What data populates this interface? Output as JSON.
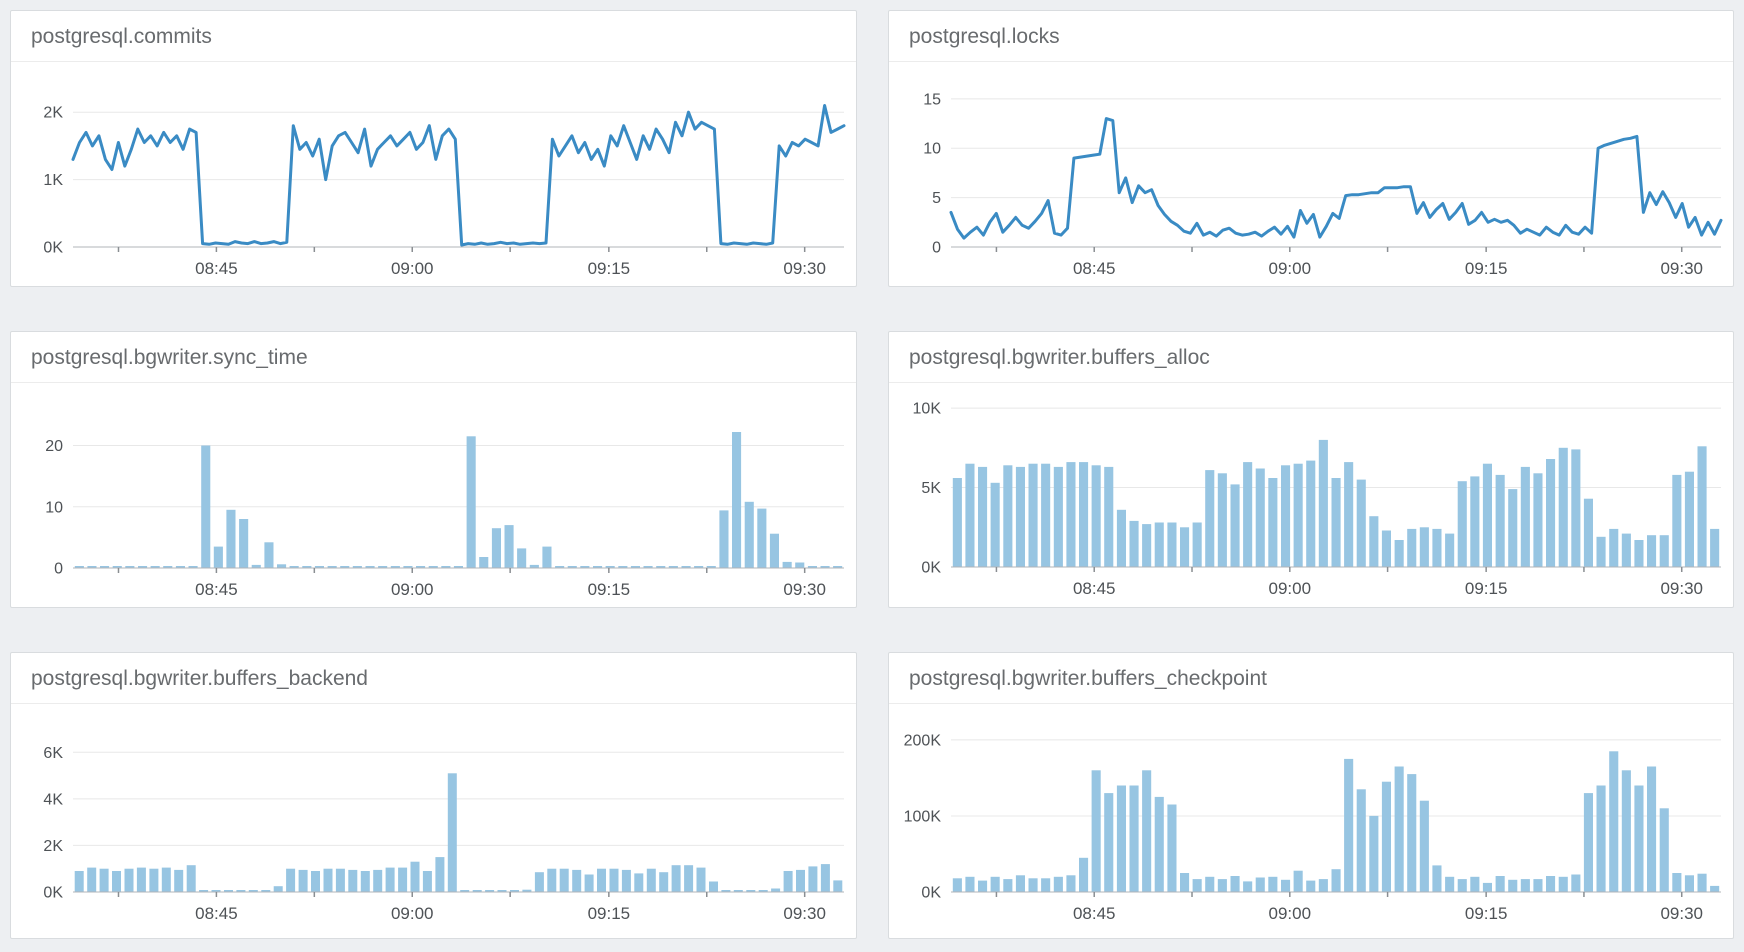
{
  "page": {
    "background": "#edeff2",
    "panel_background": "#ffffff",
    "panel_border": "#d9dcdf",
    "title_color": "#686b6e",
    "grid_color": "#e8e8e8",
    "axis_color": "#b0b4b8",
    "tick_color": "#8a8e92",
    "tick_label_color": "#4e5256",
    "line_color": "#3a8bc4",
    "bar_color": "#97c5e2"
  },
  "chart_data": [
    {
      "type": "line",
      "title": "postgresql.commits",
      "xlabel": "",
      "ylabel": "",
      "color": "#3a8bc4",
      "ymax": 2.3,
      "yticks": [
        {
          "v": 0,
          "label": "0K"
        },
        {
          "v": 1,
          "label": "1K"
        },
        {
          "v": 2,
          "label": "2K"
        }
      ],
      "xticks": [
        {
          "f": 0.186,
          "label": "08:45"
        },
        {
          "f": 0.44,
          "label": "09:00"
        },
        {
          "f": 0.695,
          "label": "09:15"
        },
        {
          "f": 0.949,
          "label": "09:30"
        }
      ],
      "minor_xticks": [
        0.059,
        0.313,
        0.567,
        0.822
      ],
      "grid": true,
      "legend": "none",
      "margins": {
        "top": 30,
        "bottom": 39
      },
      "values": [
        1.3,
        1.55,
        1.7,
        1.5,
        1.65,
        1.3,
        1.15,
        1.55,
        1.2,
        1.45,
        1.75,
        1.55,
        1.65,
        1.5,
        1.7,
        1.55,
        1.65,
        1.45,
        1.75,
        1.7,
        0.05,
        0.04,
        0.06,
        0.05,
        0.04,
        0.08,
        0.06,
        0.05,
        0.08,
        0.05,
        0.06,
        0.08,
        0.05,
        0.07,
        1.8,
        1.45,
        1.55,
        1.35,
        1.6,
        1.0,
        1.5,
        1.65,
        1.7,
        1.55,
        1.4,
        1.75,
        1.2,
        1.45,
        1.55,
        1.65,
        1.5,
        1.6,
        1.7,
        1.45,
        1.55,
        1.8,
        1.3,
        1.65,
        1.75,
        1.6,
        0.03,
        0.05,
        0.04,
        0.06,
        0.04,
        0.05,
        0.07,
        0.05,
        0.06,
        0.04,
        0.05,
        0.06,
        0.05,
        0.06,
        1.6,
        1.35,
        1.5,
        1.65,
        1.4,
        1.55,
        1.3,
        1.45,
        1.2,
        1.65,
        1.5,
        1.8,
        1.55,
        1.3,
        1.65,
        1.45,
        1.75,
        1.6,
        1.4,
        1.85,
        1.65,
        2.0,
        1.75,
        1.85,
        1.8,
        1.75,
        0.05,
        0.04,
        0.06,
        0.05,
        0.04,
        0.06,
        0.05,
        0.04,
        0.06,
        1.5,
        1.35,
        1.55,
        1.5,
        1.6,
        1.55,
        1.5,
        2.1,
        1.7,
        1.75,
        1.8
      ]
    },
    {
      "type": "line",
      "title": "postgresql.locks",
      "xlabel": "",
      "ylabel": "",
      "color": "#3a8bc4",
      "ymax": 16.3,
      "yticks": [
        {
          "v": 0,
          "label": "0"
        },
        {
          "v": 5,
          "label": "5"
        },
        {
          "v": 10,
          "label": "10"
        },
        {
          "v": 15,
          "label": "15"
        }
      ],
      "xticks": [
        {
          "f": 0.186,
          "label": "08:45"
        },
        {
          "f": 0.44,
          "label": "09:00"
        },
        {
          "f": 0.695,
          "label": "09:15"
        },
        {
          "f": 0.949,
          "label": "09:30"
        }
      ],
      "minor_xticks": [
        0.059,
        0.313,
        0.567,
        0.822
      ],
      "grid": true,
      "legend": "none",
      "margins": {
        "top": 24,
        "bottom": 39
      },
      "values": [
        3.5,
        1.8,
        0.9,
        1.5,
        2.0,
        1.2,
        2.5,
        3.4,
        1.5,
        2.2,
        3.0,
        2.2,
        1.9,
        2.6,
        3.4,
        4.7,
        1.4,
        1.2,
        1.9,
        9.0,
        9.1,
        9.2,
        9.3,
        9.4,
        13.0,
        12.8,
        5.5,
        7.0,
        4.5,
        6.2,
        5.5,
        5.8,
        4.2,
        3.3,
        2.6,
        2.2,
        1.6,
        1.4,
        2.4,
        1.2,
        1.5,
        1.1,
        1.7,
        1.9,
        1.4,
        1.2,
        1.3,
        1.5,
        1.1,
        1.6,
        2.0,
        1.3,
        2.1,
        1.0,
        3.7,
        2.4,
        3.3,
        1.0,
        2.1,
        3.4,
        2.9,
        5.2,
        5.3,
        5.3,
        5.4,
        5.5,
        5.5,
        6.0,
        6.0,
        6.0,
        6.1,
        6.1,
        3.4,
        4.5,
        3.0,
        3.8,
        4.4,
        2.8,
        3.5,
        4.4,
        2.3,
        2.7,
        3.5,
        2.5,
        2.8,
        2.5,
        2.7,
        2.2,
        1.4,
        1.8,
        1.5,
        1.2,
        2.0,
        1.5,
        1.2,
        2.2,
        1.5,
        1.3,
        2.0,
        1.4,
        10.0,
        10.3,
        10.5,
        10.7,
        10.9,
        11.0,
        11.2,
        3.5,
        5.5,
        4.3,
        5.6,
        4.5,
        3.0,
        4.4,
        2.0,
        3.0,
        1.2,
        2.5,
        1.3,
        2.7
      ]
    },
    {
      "type": "bar",
      "title": "postgresql.bgwriter.sync_time",
      "xlabel": "",
      "ylabel": "",
      "color": "#97c5e2",
      "ymax": 24,
      "yticks": [
        {
          "v": 0,
          "label": "0"
        },
        {
          "v": 10,
          "label": "10"
        },
        {
          "v": 20,
          "label": "20"
        }
      ],
      "xticks": [
        {
          "f": 0.186,
          "label": "08:45"
        },
        {
          "f": 0.44,
          "label": "09:00"
        },
        {
          "f": 0.695,
          "label": "09:15"
        },
        {
          "f": 0.949,
          "label": "09:30"
        }
      ],
      "minor_xticks": [
        0.059,
        0.313,
        0.567,
        0.822
      ],
      "grid": true,
      "legend": "none",
      "margins": {
        "top": 38,
        "bottom": 39
      },
      "values": [
        0.2,
        0.15,
        0.25,
        0.2,
        0.15,
        0.2,
        0.25,
        0.15,
        0.2,
        0.2,
        20,
        3.5,
        9.5,
        8.0,
        0.5,
        4.2,
        0.6,
        0.2,
        0.15,
        0.2,
        0.25,
        0.15,
        0.2,
        0.15,
        0.2,
        0.25,
        0.2,
        0.15,
        0.2,
        0.15,
        0.2,
        21.5,
        1.8,
        6.5,
        7.0,
        3.2,
        0.5,
        3.5,
        0.2,
        0.15,
        0.2,
        0.15,
        0.25,
        0.2,
        0.15,
        0.2,
        0.2,
        0.15,
        0.2,
        0.15,
        0.2,
        9.4,
        22.2,
        10.8,
        9.7,
        5.6,
        1.0,
        0.9,
        0.3,
        0.2,
        0.15
      ]
    },
    {
      "type": "bar",
      "title": "postgresql.bgwriter.buffers_alloc",
      "xlabel": "",
      "ylabel": "",
      "color": "#97c5e2",
      "ymax": 10.7,
      "yticks": [
        {
          "v": 0,
          "label": "0K"
        },
        {
          "v": 5,
          "label": "5K"
        },
        {
          "v": 10,
          "label": "10K"
        }
      ],
      "xticks": [
        {
          "f": 0.186,
          "label": "08:45"
        },
        {
          "f": 0.44,
          "label": "09:00"
        },
        {
          "f": 0.695,
          "label": "09:15"
        },
        {
          "f": 0.949,
          "label": "09:30"
        }
      ],
      "minor_xticks": [
        0.059,
        0.313,
        0.567,
        0.822
      ],
      "grid": true,
      "legend": "none",
      "margins": {
        "top": 14,
        "bottom": 40
      },
      "values": [
        5.6,
        6.5,
        6.3,
        5.3,
        6.4,
        6.3,
        6.5,
        6.5,
        6.3,
        6.6,
        6.6,
        6.4,
        6.3,
        3.6,
        2.9,
        2.7,
        2.8,
        2.8,
        2.5,
        2.8,
        6.1,
        5.9,
        5.2,
        6.6,
        6.2,
        5.6,
        6.4,
        6.5,
        6.7,
        8.0,
        5.6,
        6.6,
        5.5,
        3.2,
        2.3,
        1.7,
        2.4,
        2.5,
        2.4,
        2.1,
        5.4,
        5.7,
        6.5,
        5.8,
        4.9,
        6.3,
        5.9,
        6.8,
        7.5,
        7.4,
        4.3,
        1.9,
        2.4,
        2.1,
        1.7,
        2.0,
        2.0,
        5.8,
        6.0,
        7.6,
        2.4
      ]
    },
    {
      "type": "bar",
      "title": "postgresql.bgwriter.buffers_backend",
      "xlabel": "",
      "ylabel": "",
      "color": "#97c5e2",
      "ymax": 6.7,
      "yticks": [
        {
          "v": 0,
          "label": "0K"
        },
        {
          "v": 2,
          "label": "2K"
        },
        {
          "v": 4,
          "label": "4K"
        },
        {
          "v": 6,
          "label": "6K"
        }
      ],
      "xticks": [
        {
          "f": 0.186,
          "label": "08:45"
        },
        {
          "f": 0.44,
          "label": "09:00"
        },
        {
          "f": 0.695,
          "label": "09:15"
        },
        {
          "f": 0.949,
          "label": "09:30"
        }
      ],
      "minor_xticks": [
        0.059,
        0.313,
        0.567,
        0.822
      ],
      "grid": true,
      "legend": "none",
      "margins": {
        "top": 32,
        "bottom": 46
      },
      "values": [
        0.9,
        1.05,
        1.0,
        0.9,
        1.0,
        1.05,
        1.0,
        1.05,
        0.95,
        1.15,
        0.03,
        0.05,
        0.03,
        0.06,
        0.05,
        0.08,
        0.25,
        1.0,
        0.95,
        0.9,
        1.0,
        1.0,
        0.95,
        0.9,
        0.95,
        1.05,
        1.05,
        1.3,
        0.9,
        1.5,
        5.1,
        0.02,
        0.03,
        0.02,
        0.04,
        0.05,
        0.1,
        0.85,
        1.0,
        1.0,
        0.95,
        0.75,
        1.0,
        1.0,
        0.95,
        0.8,
        1.0,
        0.85,
        1.15,
        1.15,
        1.05,
        0.45,
        0.02,
        0.03,
        0.02,
        0.05,
        0.15,
        0.9,
        0.95,
        1.1,
        1.2,
        0.5
      ]
    },
    {
      "type": "bar",
      "title": "postgresql.bgwriter.buffers_checkpoint",
      "xlabel": "",
      "ylabel": "",
      "color": "#97c5e2",
      "ymax": 213,
      "yticks": [
        {
          "v": 0,
          "label": "0K"
        },
        {
          "v": 100,
          "label": "100K"
        },
        {
          "v": 200,
          "label": "200K"
        }
      ],
      "xticks": [
        {
          "f": 0.186,
          "label": "08:45"
        },
        {
          "f": 0.44,
          "label": "09:00"
        },
        {
          "f": 0.695,
          "label": "09:15"
        },
        {
          "f": 0.949,
          "label": "09:30"
        }
      ],
      "minor_xticks": [
        0.059,
        0.313,
        0.567,
        0.822
      ],
      "grid": true,
      "legend": "none",
      "margins": {
        "top": 26,
        "bottom": 46
      },
      "values": [
        18,
        20,
        15,
        20,
        17,
        22,
        18,
        18,
        20,
        22,
        45,
        160,
        130,
        140,
        140,
        160,
        125,
        115,
        25,
        17,
        20,
        17,
        21,
        14,
        19,
        20,
        16,
        28,
        15,
        17,
        30,
        175,
        135,
        100,
        145,
        165,
        155,
        120,
        35,
        20,
        17,
        20,
        12,
        21,
        16,
        17,
        17,
        21,
        20,
        23,
        130,
        140,
        185,
        160,
        140,
        165,
        110,
        25,
        22,
        24,
        8
      ]
    }
  ]
}
